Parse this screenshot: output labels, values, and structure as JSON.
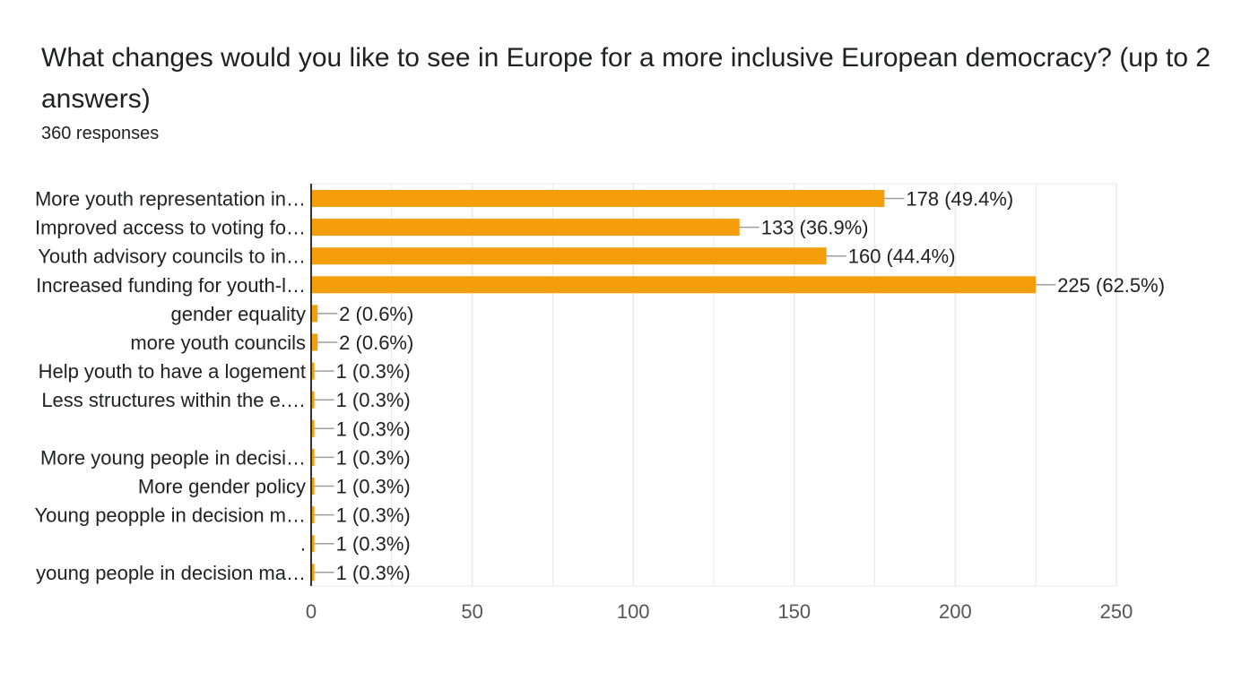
{
  "header": {
    "title": "What changes would you like to see in Europe for a more inclusive European democracy? (up to 2 answers)",
    "responses": "360 responses"
  },
  "colors": {
    "bar": "#f59e0b",
    "grid": "#e8e8e8",
    "axis": "#333333",
    "leader": "#9e9e9e",
    "text": "#202124",
    "tick_text": "#555555"
  },
  "chart_data": {
    "type": "bar",
    "orientation": "horizontal",
    "title": "What changes would you like to see in Europe for a more inclusive European democracy? (up to 2 answers)",
    "xlabel": "",
    "ylabel": "",
    "xlim": [
      0,
      250
    ],
    "x_ticks": [
      0,
      50,
      100,
      150,
      200,
      250
    ],
    "categories": [
      "More youth representation in…",
      "Improved access to voting fo…",
      "Youth advisory councils to in…",
      "Increased funding for youth-l…",
      "gender equality",
      "more youth councils",
      "Help youth to have a logement",
      "Less structures within the e.…",
      "",
      "More young people in decisi…",
      "More gender policy",
      "Young peopple in decision m…",
      ".",
      "young people in decision ma…"
    ],
    "values": [
      178,
      133,
      160,
      225,
      2,
      2,
      1,
      1,
      1,
      1,
      1,
      1,
      1,
      1
    ],
    "data_labels": [
      "178 (49.4%)",
      "133 (36.9%)",
      "160 (44.4%)",
      "225 (62.5%)",
      "2 (0.6%)",
      "2 (0.6%)",
      "1 (0.3%)",
      "1 (0.3%)",
      "1 (0.3%)",
      "1 (0.3%)",
      "1 (0.3%)",
      "1 (0.3%)",
      "1 (0.3%)",
      "1 (0.3%)"
    ]
  }
}
